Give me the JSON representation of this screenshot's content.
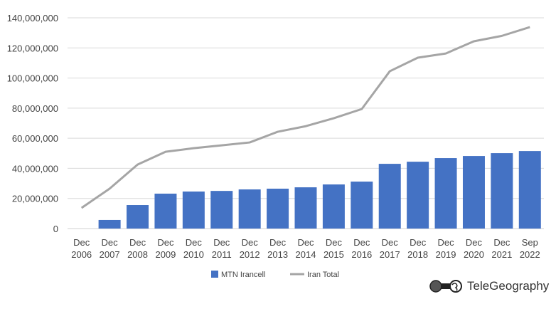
{
  "chart_data": {
    "type": "bar",
    "categories": [
      [
        "Dec",
        "2006"
      ],
      [
        "Dec",
        "2007"
      ],
      [
        "Dec",
        "2008"
      ],
      [
        "Dec",
        "2009"
      ],
      [
        "Dec",
        "2010"
      ],
      [
        "Dec",
        "2011"
      ],
      [
        "Dec",
        "2012"
      ],
      [
        "Dec",
        "2013"
      ],
      [
        "Dec",
        "2014"
      ],
      [
        "Dec",
        "2015"
      ],
      [
        "Dec",
        "2016"
      ],
      [
        "Dec",
        "2017"
      ],
      [
        "Dec",
        "2018"
      ],
      [
        "Dec",
        "2019"
      ],
      [
        "Dec",
        "2020"
      ],
      [
        "Dec",
        "2021"
      ],
      [
        "Sep",
        "2022"
      ]
    ],
    "series": [
      {
        "name": "MTN Irancell",
        "type": "bar",
        "color": "#4472C4",
        "values": [
          0,
          5700000,
          15600000,
          23200000,
          24600000,
          25000000,
          26000000,
          26500000,
          27400000,
          29300000,
          31200000,
          43000000,
          44400000,
          46800000,
          48200000,
          50100000,
          51500000
        ]
      },
      {
        "name": "Iran Total",
        "type": "line",
        "color": "#A5A5A5",
        "values": [
          13700000,
          26500000,
          42500000,
          51000000,
          53400000,
          55300000,
          57200000,
          64300000,
          68000000,
          73300000,
          79400000,
          104500000,
          113500000,
          116300000,
          124400000,
          128000000,
          133800000
        ]
      }
    ],
    "ylim": [
      0,
      140000000
    ],
    "yticks": [
      "0",
      "20,000,000",
      "40,000,000",
      "60,000,000",
      "80,000,000",
      "100,000,000",
      "120,000,000",
      "140,000,000"
    ],
    "grid": true,
    "legend": "bottom"
  },
  "logo": {
    "text": "TeleGeography"
  }
}
